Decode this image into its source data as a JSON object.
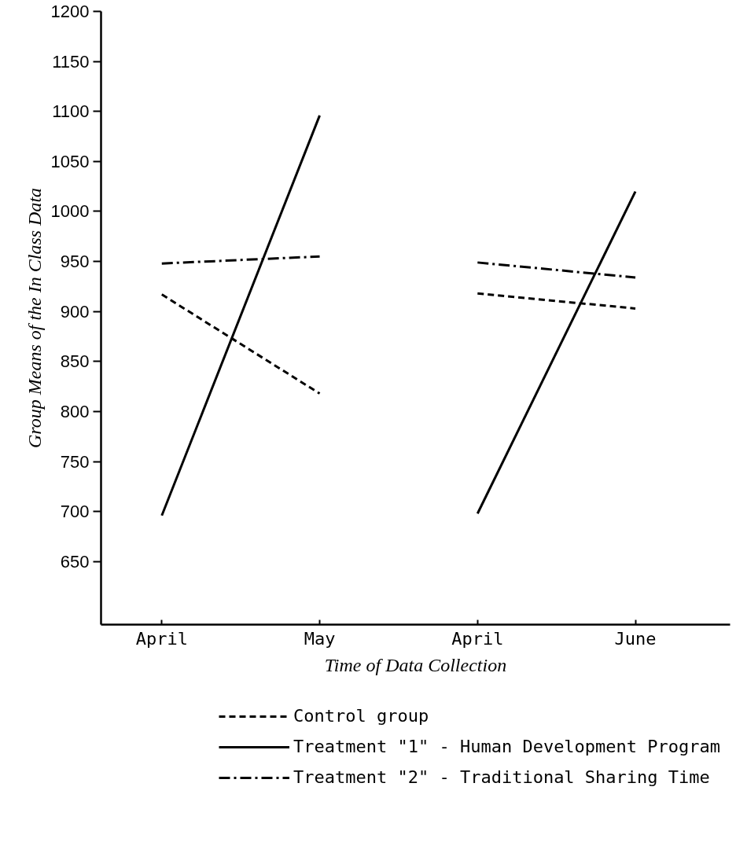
{
  "chart_data": {
    "type": "line",
    "xlabel": "Time of Data Collection",
    "ylabel": "Group Means of the In Class Data",
    "categories": [
      "April",
      "May",
      "April",
      "June"
    ],
    "series": [
      {
        "name": "Control group",
        "color": "#000000",
        "line_style": "dashed",
        "values": [
          917,
          818,
          null,
          null
        ]
      },
      {
        "color": "#000000",
        "line_style": "dashed",
        "values": [
          null,
          null,
          918,
          903
        ]
      },
      {
        "name": "Treatment \"1\" - Human Development Program",
        "color": "#000000",
        "line_style": "solid",
        "values": [
          696,
          1096,
          null,
          null
        ]
      },
      {
        "color": "#000000",
        "line_style": "solid",
        "values": [
          null,
          null,
          698,
          1020
        ]
      },
      {
        "name": "Treatment \"2\" - Traditional Sharing Time",
        "color": "#000000",
        "line_style": "dashdot",
        "values": [
          948,
          955,
          null,
          null
        ]
      },
      {
        "color": "#000000",
        "line_style": "dashdot",
        "values": [
          null,
          null,
          949,
          934
        ]
      }
    ],
    "ylim": [
      587,
      1200
    ],
    "yticks": [
      650,
      700,
      750,
      800,
      850,
      900,
      950,
      1000,
      1050,
      1100,
      1150,
      1200
    ],
    "grid": false,
    "legend": "bottom",
    "marker": "none"
  }
}
